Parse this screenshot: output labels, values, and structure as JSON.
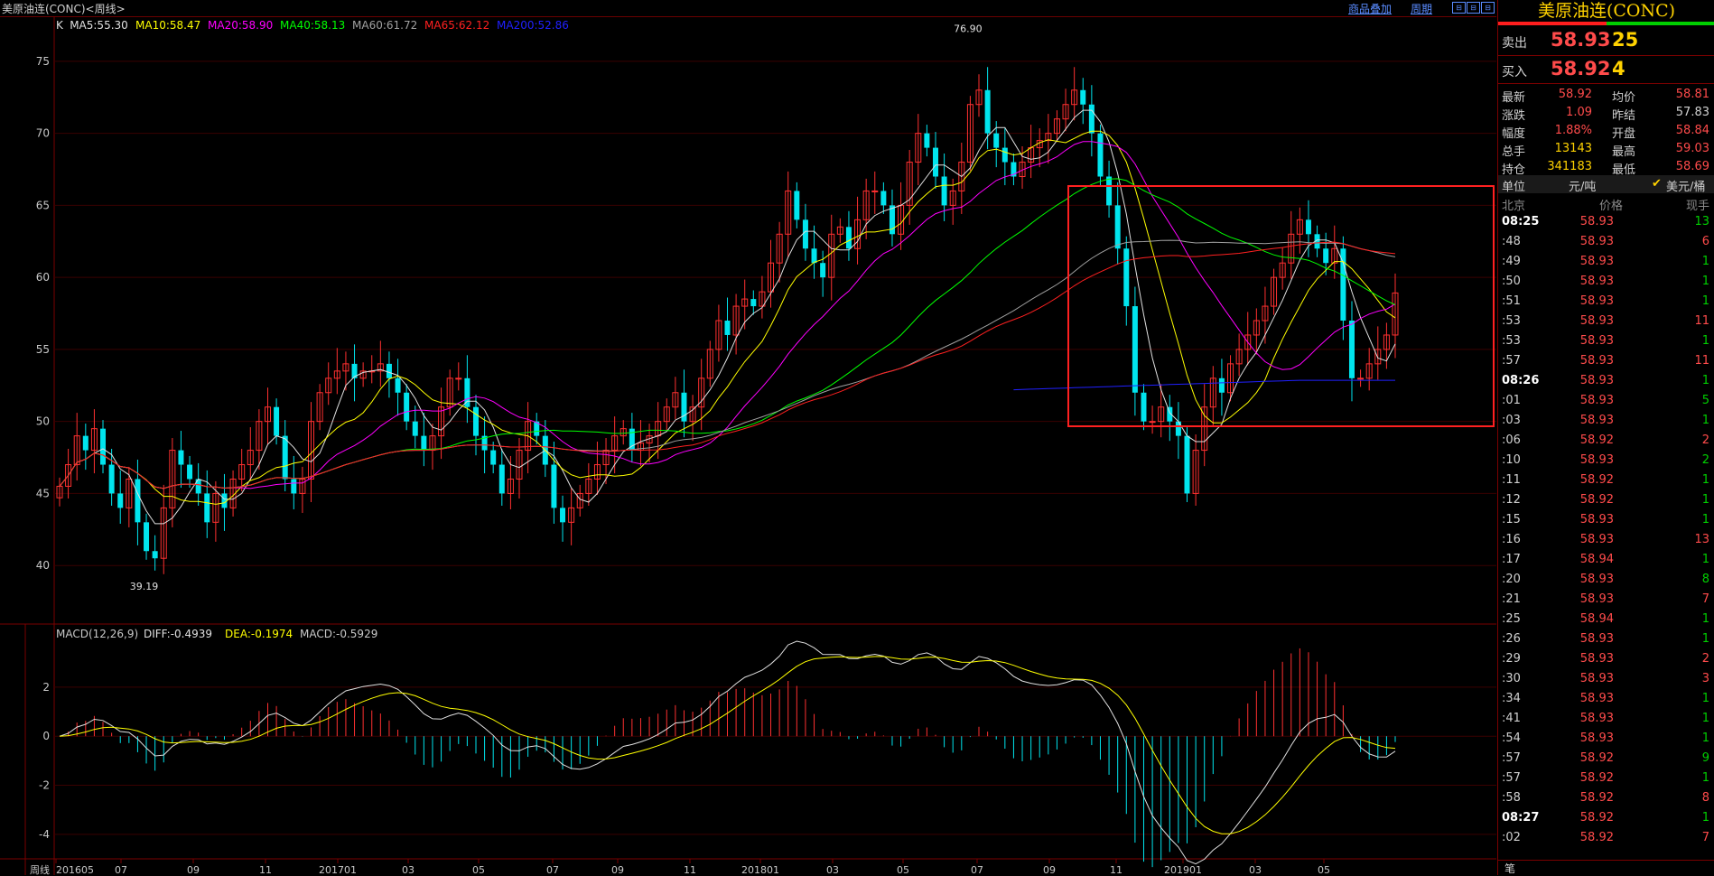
{
  "window": {
    "title": "美原油连(CONC)<周线>",
    "links": [
      "商品叠加",
      "周期"
    ],
    "win_buttons": [
      "⊟",
      "⊟",
      "⊟"
    ]
  },
  "main_chart": {
    "ma_legend": [
      {
        "label": "K",
        "color": "#e0e0e0"
      },
      {
        "label": "MA5:55.30",
        "color": "#e0e0e0"
      },
      {
        "label": "MA10:58.47",
        "color": "#ffff00"
      },
      {
        "label": "MA20:58.90",
        "color": "#ff00ff"
      },
      {
        "label": "MA40:58.13",
        "color": "#00ff00"
      },
      {
        "label": "MA60:61.72",
        "color": "#a0a0a0"
      },
      {
        "label": "MA65:62.12",
        "color": "#ff2020"
      },
      {
        "label": "MA200:52.86",
        "color": "#2020ff"
      }
    ],
    "y_ticks": [
      "75",
      "70",
      "65",
      "60",
      "55",
      "50",
      "45",
      "40"
    ],
    "high_annotation": "76.90",
    "low_annotation": "39.19"
  },
  "macd": {
    "legend": [
      {
        "label": "MACD(12,26,9)",
        "color": "#c8c8c8"
      },
      {
        "label": "DIFF:-0.4939",
        "color": "#e0e0e0"
      },
      {
        "label": "DEA:-0.1974",
        "color": "#ffff00"
      },
      {
        "label": "MACD:-0.5929",
        "color": "#c8c8c8"
      }
    ],
    "y_ticks": [
      "2",
      "0",
      "-2",
      "-4"
    ]
  },
  "x_axis": {
    "period_label": "周线",
    "ticks": [
      "201605",
      "07",
      "09",
      "11",
      "201701",
      "03",
      "05",
      "07",
      "09",
      "11",
      "201801",
      "03",
      "05",
      "07",
      "09",
      "11",
      "201901",
      "03",
      "05"
    ]
  },
  "chart_data": [
    {
      "type": "candlestick",
      "title": "美原油连(CONC)<周线>",
      "x_range": [
        "201605",
        "201906"
      ],
      "y_range": [
        36,
        77.5
      ],
      "high": 76.9,
      "low": 39.19,
      "ma_last_values": {
        "MA5": 55.3,
        "MA10": 58.47,
        "MA20": 58.9,
        "MA40": 58.13,
        "MA60": 61.72,
        "MA65": 62.12,
        "MA200": 52.86
      },
      "weekly_close_approx": [
        45.5,
        47,
        49,
        48,
        49.5,
        47,
        45,
        44,
        46,
        43,
        41,
        40.5,
        44,
        48,
        47,
        46,
        45,
        43,
        45,
        44,
        46,
        47,
        48,
        50,
        51,
        49,
        46,
        45,
        46,
        50,
        52,
        53,
        53.5,
        54,
        53,
        53.5,
        53.5,
        54,
        53,
        52,
        50,
        49,
        48,
        49,
        51,
        53,
        53,
        51,
        49,
        48,
        47,
        45,
        46,
        48,
        50,
        49,
        47,
        44,
        43,
        44,
        45,
        46,
        47,
        48,
        49,
        49.5,
        48,
        48.5,
        49,
        50,
        51,
        52,
        50,
        51,
        53,
        55,
        57,
        56,
        58,
        58.5,
        58,
        59,
        61,
        63,
        66,
        64,
        62,
        61,
        60,
        63,
        63.5,
        62,
        64,
        66,
        66,
        65,
        63,
        65,
        68,
        70,
        69,
        67,
        65,
        66,
        68,
        72,
        73,
        70,
        69,
        68,
        67,
        68,
        69,
        69.5,
        70,
        71,
        72,
        73,
        72,
        70,
        67,
        65,
        62,
        58,
        52,
        50,
        50,
        51,
        50,
        49,
        45,
        48,
        51,
        53,
        52,
        54,
        55,
        56,
        57,
        58,
        60,
        61,
        63,
        64,
        63,
        62,
        61,
        62,
        57,
        53,
        53,
        54,
        55,
        56,
        58.92
      ],
      "annotations": [
        {
          "label": "76.90",
          "meaning": "high"
        },
        {
          "label": "39.19",
          "meaning": "low"
        }
      ]
    },
    {
      "type": "line",
      "title": "MACD(12,26,9)",
      "series": [
        {
          "name": "DIFF",
          "last": -0.4939
        },
        {
          "name": "DEA",
          "last": -0.1974
        },
        {
          "name": "MACD",
          "last": -0.5929
        }
      ],
      "y_range": [
        -5,
        3.8
      ]
    }
  ],
  "right_panel": {
    "title": "美原油连(CONC)",
    "sell": {
      "label": "卖出",
      "price": "58.93",
      "volume": "25"
    },
    "buy": {
      "label": "买入",
      "price": "58.92",
      "volume": "4"
    },
    "stats": [
      {
        "l1": "最新",
        "v1": "58.92",
        "c1": "#ff4b4b",
        "l2": "均价",
        "v2": "58.81",
        "c2": "#ff4b4b"
      },
      {
        "l1": "涨跌",
        "v1": "1.09",
        "c1": "#ff4b4b",
        "l2": "昨结",
        "v2": "57.83",
        "c2": "#d0d0d0"
      },
      {
        "l1": "幅度",
        "v1": "1.88%",
        "c1": "#ff4b4b",
        "l2": "开盘",
        "v2": "58.84",
        "c2": "#ff4b4b"
      },
      {
        "l1": "总手",
        "v1": "13143",
        "c1": "#ffd200",
        "l2": "最高",
        "v2": "59.03",
        "c2": "#ff4b4b"
      },
      {
        "l1": "持仓",
        "v1": "341183",
        "c1": "#ffd200",
        "l2": "最低",
        "v2": "58.69",
        "c2": "#ff4b4b"
      }
    ],
    "unit": {
      "label": "单位",
      "value": "元/吨",
      "check": "✔",
      "alt": "美元/桶"
    },
    "ticks_header": {
      "time": "北京",
      "price": "价格",
      "vol": "现手"
    },
    "ticks": [
      {
        "t": "08:25",
        "p": "58.93",
        "v": "13",
        "bold": true
      },
      {
        "t": ":48",
        "p": "58.93",
        "v": "6"
      },
      {
        "t": ":49",
        "p": "58.93",
        "v": "1"
      },
      {
        "t": ":50",
        "p": "58.93",
        "v": "1"
      },
      {
        "t": ":51",
        "p": "58.93",
        "v": "1"
      },
      {
        "t": ":53",
        "p": "58.93",
        "v": "11"
      },
      {
        "t": ":53",
        "p": "58.93",
        "v": "1"
      },
      {
        "t": ":57",
        "p": "58.93",
        "v": "11"
      },
      {
        "t": "08:26",
        "p": "58.93",
        "v": "1",
        "bold": true
      },
      {
        "t": ":01",
        "p": "58.93",
        "v": "5"
      },
      {
        "t": ":03",
        "p": "58.93",
        "v": "1"
      },
      {
        "t": ":06",
        "p": "58.92",
        "v": "2"
      },
      {
        "t": ":10",
        "p": "58.93",
        "v": "2"
      },
      {
        "t": ":11",
        "p": "58.92",
        "v": "1"
      },
      {
        "t": ":12",
        "p": "58.92",
        "v": "1"
      },
      {
        "t": ":15",
        "p": "58.93",
        "v": "1"
      },
      {
        "t": ":16",
        "p": "58.93",
        "v": "13"
      },
      {
        "t": ":17",
        "p": "58.94",
        "v": "1"
      },
      {
        "t": ":20",
        "p": "58.93",
        "v": "8"
      },
      {
        "t": ":21",
        "p": "58.93",
        "v": "7"
      },
      {
        "t": ":25",
        "p": "58.94",
        "v": "1"
      },
      {
        "t": ":26",
        "p": "58.93",
        "v": "1"
      },
      {
        "t": ":29",
        "p": "58.93",
        "v": "2"
      },
      {
        "t": ":30",
        "p": "58.93",
        "v": "3"
      },
      {
        "t": ":34",
        "p": "58.93",
        "v": "1"
      },
      {
        "t": ":41",
        "p": "58.93",
        "v": "1"
      },
      {
        "t": ":54",
        "p": "58.93",
        "v": "1"
      },
      {
        "t": ":57",
        "p": "58.92",
        "v": "9"
      },
      {
        "t": ":57",
        "p": "58.92",
        "v": "1"
      },
      {
        "t": ":58",
        "p": "58.92",
        "v": "8"
      },
      {
        "t": "08:27",
        "p": "58.92",
        "v": "1",
        "bold": true
      },
      {
        "t": ":02",
        "p": "58.92",
        "v": "7"
      }
    ],
    "bottom_tab": "笔"
  },
  "colors": {
    "up": "#ff3030",
    "down": "#00e5ee",
    "grid": "#4a0000",
    "highlight_box": "#ff2020"
  }
}
